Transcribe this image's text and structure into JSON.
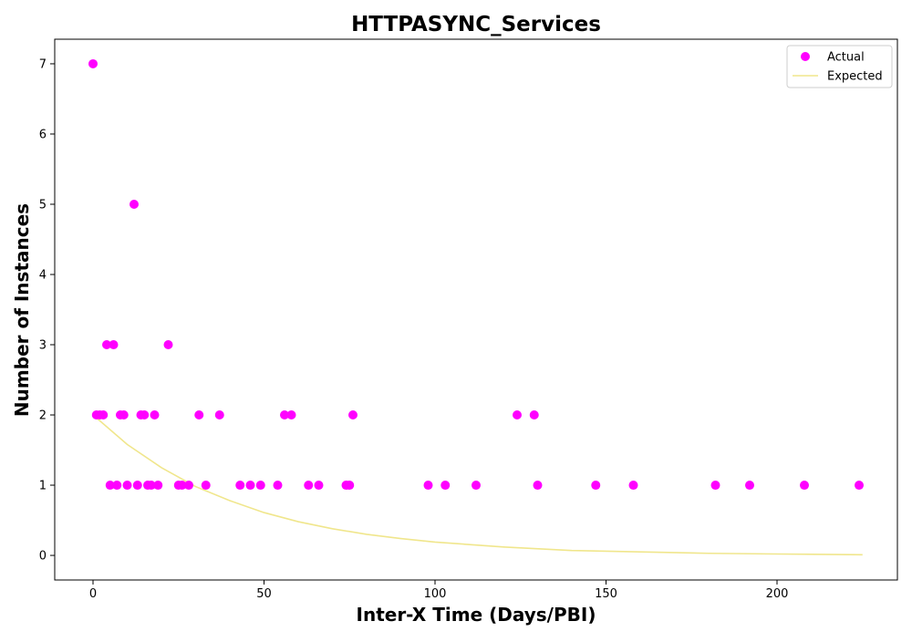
{
  "chart_data": {
    "type": "scatter",
    "title": "HTTPASYNC_Services",
    "xlabel": "Inter-X Time (Days/PBI)",
    "ylabel": "Number of Instances",
    "xlim": [
      -11.2,
      235.2
    ],
    "ylim": [
      -0.35,
      7.35
    ],
    "xticks": [
      0,
      50,
      100,
      150,
      200
    ],
    "yticks": [
      0,
      1,
      2,
      3,
      4,
      5,
      6,
      7
    ],
    "grid": false,
    "legend_position": "top-right",
    "series": [
      {
        "name": "Actual",
        "kind": "scatter",
        "color": "#ff00ff",
        "x": [
          0,
          1,
          2,
          3,
          4,
          5,
          6,
          7,
          8,
          9,
          10,
          12,
          13,
          14,
          15,
          16,
          17,
          18,
          19,
          22,
          25,
          26,
          28,
          31,
          33,
          37,
          43,
          46,
          49,
          54,
          56,
          58,
          63,
          66,
          74,
          75,
          76,
          98,
          103,
          112,
          124,
          129,
          130,
          147,
          158,
          182,
          192,
          208,
          224
        ],
        "y": [
          7,
          2,
          2,
          2,
          3,
          1,
          3,
          1,
          2,
          2,
          1,
          5,
          1,
          2,
          2,
          1,
          1,
          2,
          1,
          3,
          1,
          1,
          1,
          2,
          1,
          2,
          1,
          1,
          1,
          1,
          2,
          2,
          1,
          1,
          1,
          1,
          2,
          1,
          1,
          1,
          2,
          2,
          1,
          1,
          1,
          1,
          1,
          1,
          1
        ]
      },
      {
        "name": "Expected",
        "kind": "line",
        "color": "#f0e68c",
        "x": [
          0,
          10,
          20,
          30,
          40,
          50,
          60,
          70,
          80,
          90,
          100,
          120,
          140,
          160,
          180,
          200,
          225
        ],
        "y": [
          2.0,
          1.58,
          1.25,
          0.98,
          0.78,
          0.61,
          0.48,
          0.38,
          0.3,
          0.24,
          0.19,
          0.12,
          0.07,
          0.05,
          0.03,
          0.02,
          0.01
        ]
      }
    ]
  }
}
